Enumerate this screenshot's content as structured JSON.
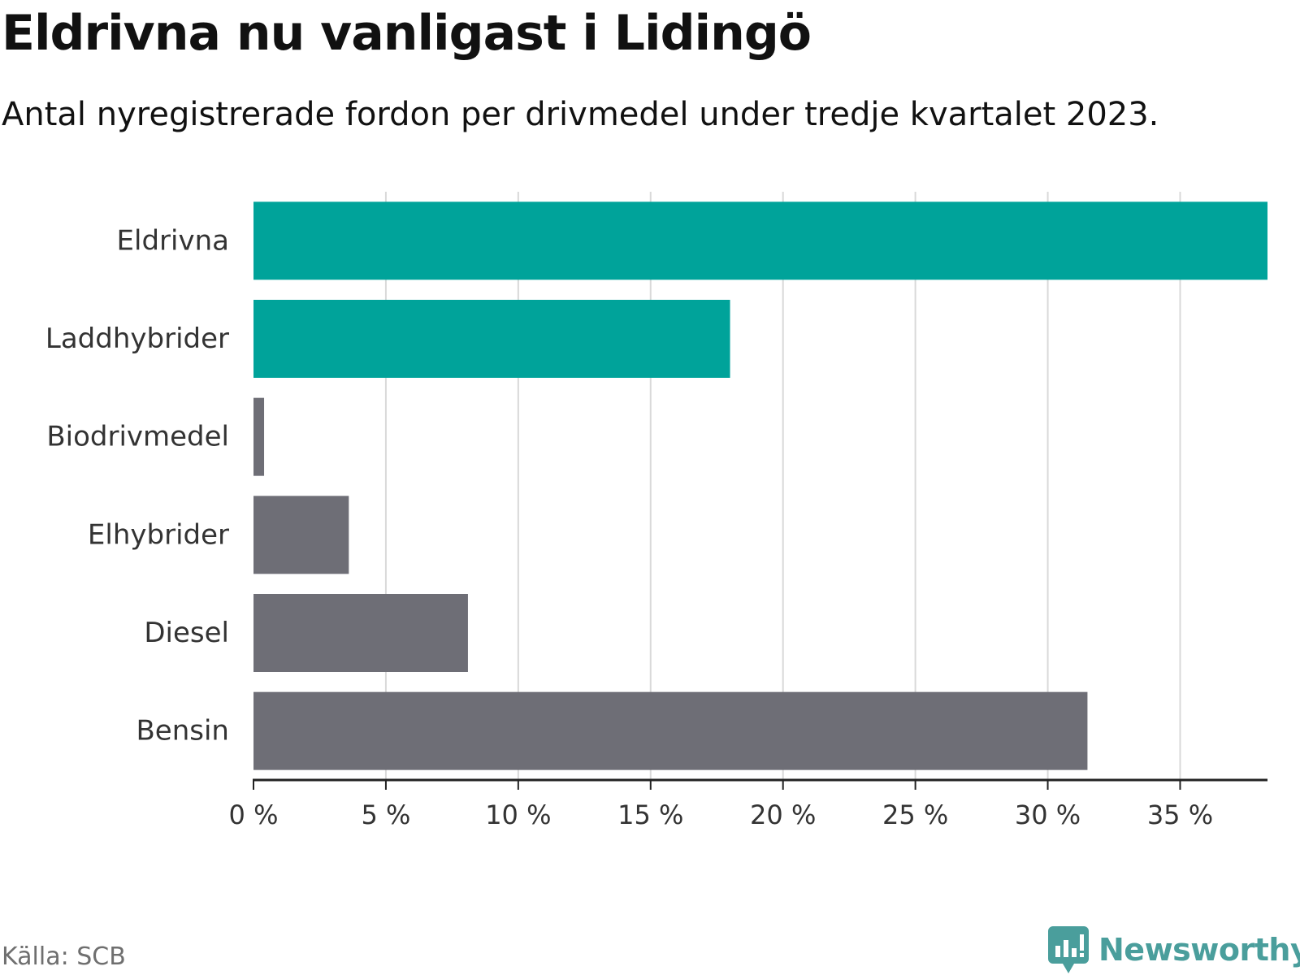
{
  "header": {
    "title": "Eldrivna nu vanligast i Lidingö",
    "subtitle": "Antal nyregistrerade fordon per drivmedel under tredje kvartalet 2023."
  },
  "footer": {
    "source": "Källa: SCB",
    "brand": "Newsworthy"
  },
  "colors": {
    "highlight": "#00a39a",
    "neutral": "#6e6e76",
    "grid": "#d9d9d9",
    "axis": "#222222",
    "label": "#333333",
    "brand": "#4a9e9c"
  },
  "chart_data": {
    "type": "bar",
    "orientation": "horizontal",
    "title": "Eldrivna nu vanligast i Lidingö",
    "subtitle": "Antal nyregistrerade fordon per drivmedel under tredje kvartalet 2023.",
    "xlabel": "",
    "ylabel": "",
    "categories": [
      "Eldrivna",
      "Laddhybrider",
      "Biodrivmedel",
      "Elhybrider",
      "Diesel",
      "Bensin"
    ],
    "values": [
      38.3,
      18.0,
      0.4,
      3.6,
      8.1,
      31.5
    ],
    "highlighted": [
      true,
      true,
      false,
      false,
      false,
      false
    ],
    "xlim": [
      0,
      38.3
    ],
    "ticks": [
      0,
      5,
      10,
      15,
      20,
      25,
      30,
      35
    ],
    "tick_labels": [
      "0 %",
      "5 %",
      "10 %",
      "15 %",
      "20 %",
      "25 %",
      "30 %",
      "35 %"
    ],
    "grid": true,
    "legend": "none"
  }
}
